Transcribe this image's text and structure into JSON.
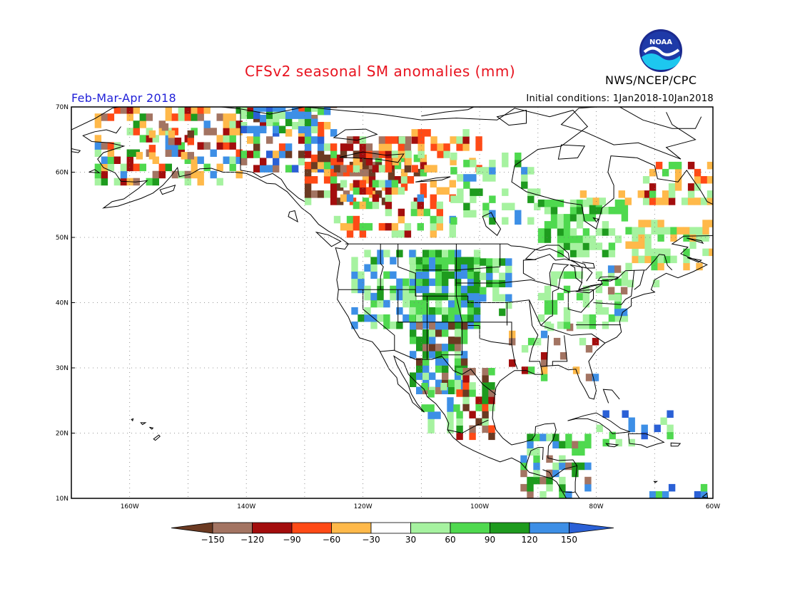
{
  "header": {
    "title": "CFSv2 seasonal SM anomalies (mm)",
    "season": "Feb-Mar-Apr 2018",
    "initial_conditions": "Initial conditions: 1Jan2018-10Jan2018",
    "agency": "NWS/NCEP/CPC",
    "logo_text": "NOAA"
  },
  "map": {
    "projection": "latitude-longitude",
    "lat_range": [
      10,
      70
    ],
    "lon_range": [
      -170,
      -60
    ],
    "lat_ticks": [
      "70N",
      "60N",
      "50N",
      "40N",
      "30N",
      "20N",
      "10N"
    ],
    "lon_ticks": [
      "160W",
      "140W",
      "120W",
      "100W",
      "80W",
      "60W"
    ],
    "gridlines": "dotted",
    "features": [
      "coastlines",
      "US state boundaries",
      "national borders"
    ]
  },
  "legend": {
    "tick_labels": [
      "-150",
      "-120",
      "-90",
      "-60",
      "-30",
      "30",
      "60",
      "90",
      "120",
      "150"
    ],
    "colors": {
      "lt_-150": "#6b3a22",
      "-150_-120": "#a37462",
      "-120_-90": "#a30d0d",
      "-90_-60": "#ff4a16",
      "-60_-30": "#ffb94a",
      "-30_30": "#ffffff",
      "30_60": "#a6f2a0",
      "60_90": "#4fd94f",
      "90_120": "#1e9b1e",
      "120_150": "#3d8fe6",
      "gt_150": "#2a60d6"
    }
  }
}
